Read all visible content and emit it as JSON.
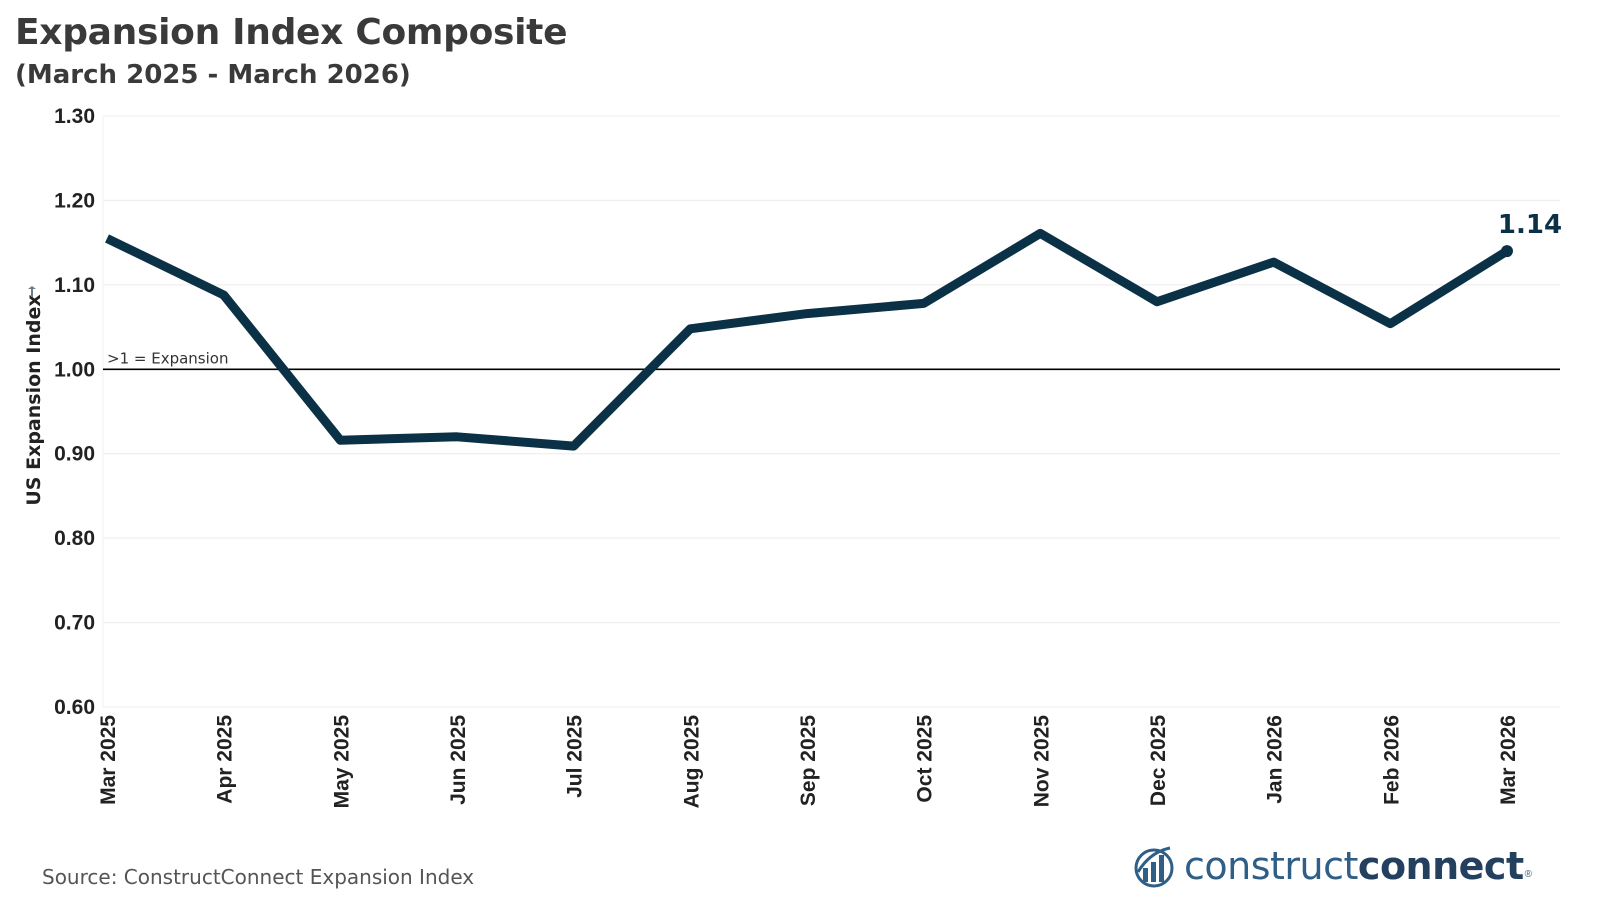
{
  "header": {
    "title": "Expansion Index Composite",
    "subtitle": "(March 2025 - March 2026)"
  },
  "chart_data": {
    "type": "line",
    "title": "Expansion Index Composite",
    "subtitle": "(March 2025 - March 2026)",
    "ylabel": "US Expansion Index",
    "xlabel": "",
    "categories": [
      "Mar 2025",
      "Apr 2025",
      "May 2025",
      "Jun 2025",
      "Jul 2025",
      "Aug 2025",
      "Sep 2025",
      "Oct 2025",
      "Nov 2025",
      "Dec 2025",
      "Jan 2026",
      "Feb 2026",
      "Mar 2026"
    ],
    "series": [
      {
        "values": [
          1.155,
          1.088,
          0.916,
          0.92,
          0.909,
          1.048,
          1.066,
          1.078,
          1.161,
          1.08,
          1.127,
          1.054,
          1.14
        ],
        "color": "#0b3147"
      }
    ],
    "ylim": [
      0.6,
      1.3
    ],
    "yticks": [
      "0.60",
      "0.70",
      "0.80",
      "0.90",
      "1.00",
      "1.10",
      "1.20",
      "1.30"
    ],
    "grid": true,
    "reference_line": {
      "value": 1.0,
      "label": ">1 = Expansion",
      "color": "#000000"
    },
    "end_label": "1.14",
    "line_color": "#0b3147",
    "grid_color": "#ececec"
  },
  "footer": {
    "source": "Source: ConstructConnect Expansion Index",
    "logo_light": "construct",
    "logo_bold": "connect",
    "logo_reg": "®"
  },
  "icons": {
    "sort_icon": "pin-icon",
    "logo_icon": "bar-chart-logo-icon"
  }
}
